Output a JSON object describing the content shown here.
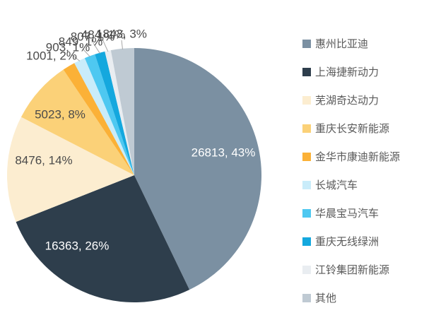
{
  "chart_data": {
    "type": "pie",
    "title": "",
    "legend_position": "right",
    "start_angle_deg": 0,
    "direction": "clockwise",
    "colors": {
      "background": "#FFFFFF",
      "label_light": "#FFFFFF",
      "label_dark": "#4A4A4A",
      "legend_text": "#595959",
      "leader_line": "#A6A6A6"
    },
    "slices": [
      {
        "label": "惠州比亚迪",
        "value": 26813,
        "percent": "43%",
        "data_label": "26813, 43%",
        "color": "#7B90A2",
        "label_placement": "inside"
      },
      {
        "label": "上海捷新动力",
        "value": 16363,
        "percent": "26%",
        "data_label": "16363, 26%",
        "color": "#2E3E4C",
        "label_placement": "inside"
      },
      {
        "label": "芜湖奇达动力",
        "value": 8476,
        "percent": "14%",
        "data_label": "8476, 14%",
        "color": "#FCEDD0",
        "label_placement": "inside"
      },
      {
        "label": "重庆长安新能源",
        "value": 5023,
        "percent": "8%",
        "data_label": "5023, 8%",
        "color": "#FBD178",
        "label_placement": "inside"
      },
      {
        "label": "金华市康迪新能源",
        "value": 1001,
        "percent": "2%",
        "data_label": "1001, 2%",
        "color": "#FBB137",
        "label_placement": "outside"
      },
      {
        "label": "长城汽车",
        "value": 903,
        "percent": "1%",
        "data_label": "903, 1%",
        "color": "#C9ECFA",
        "label_placement": "outside"
      },
      {
        "label": "华晨宝马汽车",
        "value": 849,
        "percent": "1%",
        "data_label": "849, 1%",
        "color": "#4EC8F1",
        "label_placement": "outside"
      },
      {
        "label": "重庆无线绿洲",
        "value": 807,
        "percent": "1%",
        "data_label": "807, 1%",
        "color": "#14A8DE",
        "label_placement": "outside"
      },
      {
        "label": "江铃集团新能源",
        "value": 484,
        "percent": "1%",
        "data_label": "484, 1%",
        "color": "#E9EDF1",
        "label_placement": "outside"
      },
      {
        "label": "其他",
        "value": 1843,
        "percent": "3%",
        "data_label": "1843, 3%",
        "color": "#BFCAD3",
        "label_placement": "outside"
      }
    ]
  }
}
